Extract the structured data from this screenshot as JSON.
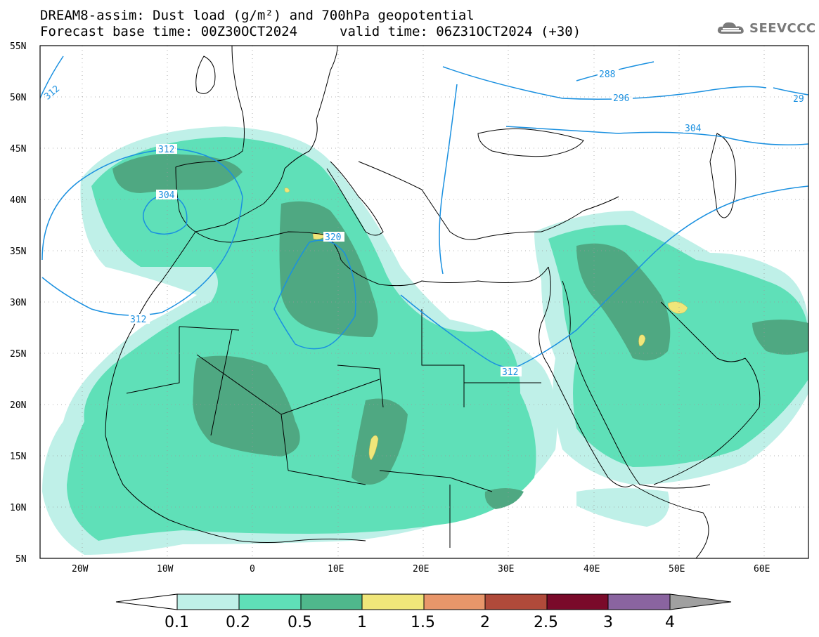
{
  "title": {
    "line1": "DREAM8-assim: Dust load (g/m²) and 700hPa geopotential",
    "line2": "Forecast base time: 00Z30OCT2024",
    "line3": "valid time: 06Z31OCT2024 (+30)"
  },
  "logo": {
    "text": "SEEVCCC"
  },
  "axes": {
    "lat_labels": [
      "55N",
      "50N",
      "45N",
      "40N",
      "35N",
      "30N",
      "25N",
      "20N",
      "15N",
      "10N",
      "5N"
    ],
    "lon_labels": [
      "20W",
      "10W",
      "0",
      "10E",
      "20E",
      "30E",
      "40E",
      "50E",
      "60E"
    ]
  },
  "contours": {
    "units": "geopotential (dam)",
    "labels": [
      "312",
      "312",
      "304",
      "320",
      "312",
      "312",
      "288",
      "296",
      "304",
      "29"
    ],
    "color": "#1a90e0"
  },
  "colorbar": {
    "levels": [
      "0.1",
      "0.2",
      "0.5",
      "1",
      "1.5",
      "2",
      "2.5",
      "3",
      "4"
    ],
    "colors": [
      "#bff0e8",
      "#5fe0b8",
      "#4fb88c",
      "#f0e67a",
      "#e8966a",
      "#b04a3a",
      "#7a0a2a",
      "#8a64a0",
      "#a0a0a0"
    ]
  },
  "palette": {
    "dust_low": "#bff0e8",
    "dust_mid": "#5fe0b8",
    "dust_high": "#4fa882",
    "dust_peak": "#f0e67a",
    "coast": "#000000",
    "contour": "#1a90e0"
  }
}
